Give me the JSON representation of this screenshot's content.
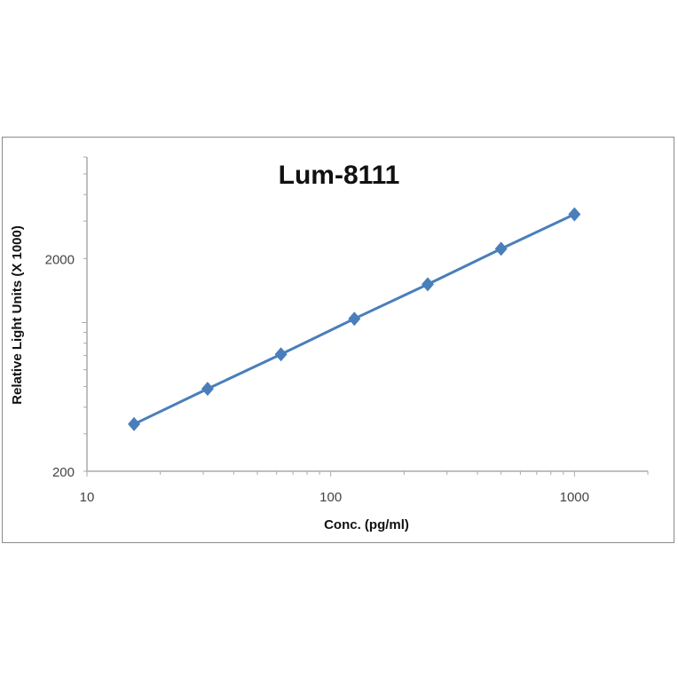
{
  "chart_data": {
    "type": "line",
    "title": "Lum-8111",
    "xlabel": "Conc. (pg/ml)",
    "ylabel": "Relative Light Units (X 1000)",
    "x_scale": "log",
    "y_scale": "log",
    "xlim": [
      10,
      2000
    ],
    "ylim": [
      200,
      6000
    ],
    "x_ticks": [
      "10",
      "100",
      "1000"
    ],
    "y_ticks": [
      "200",
      "2000"
    ],
    "grid": false,
    "marker": "diamond",
    "color": "#4a7ebb",
    "series": [
      {
        "x": [
          15.6,
          31.25,
          62.5,
          125,
          250,
          500,
          1000
        ],
        "y": [
          333,
          488,
          709,
          1042,
          1513,
          2222,
          3230
        ]
      }
    ]
  }
}
